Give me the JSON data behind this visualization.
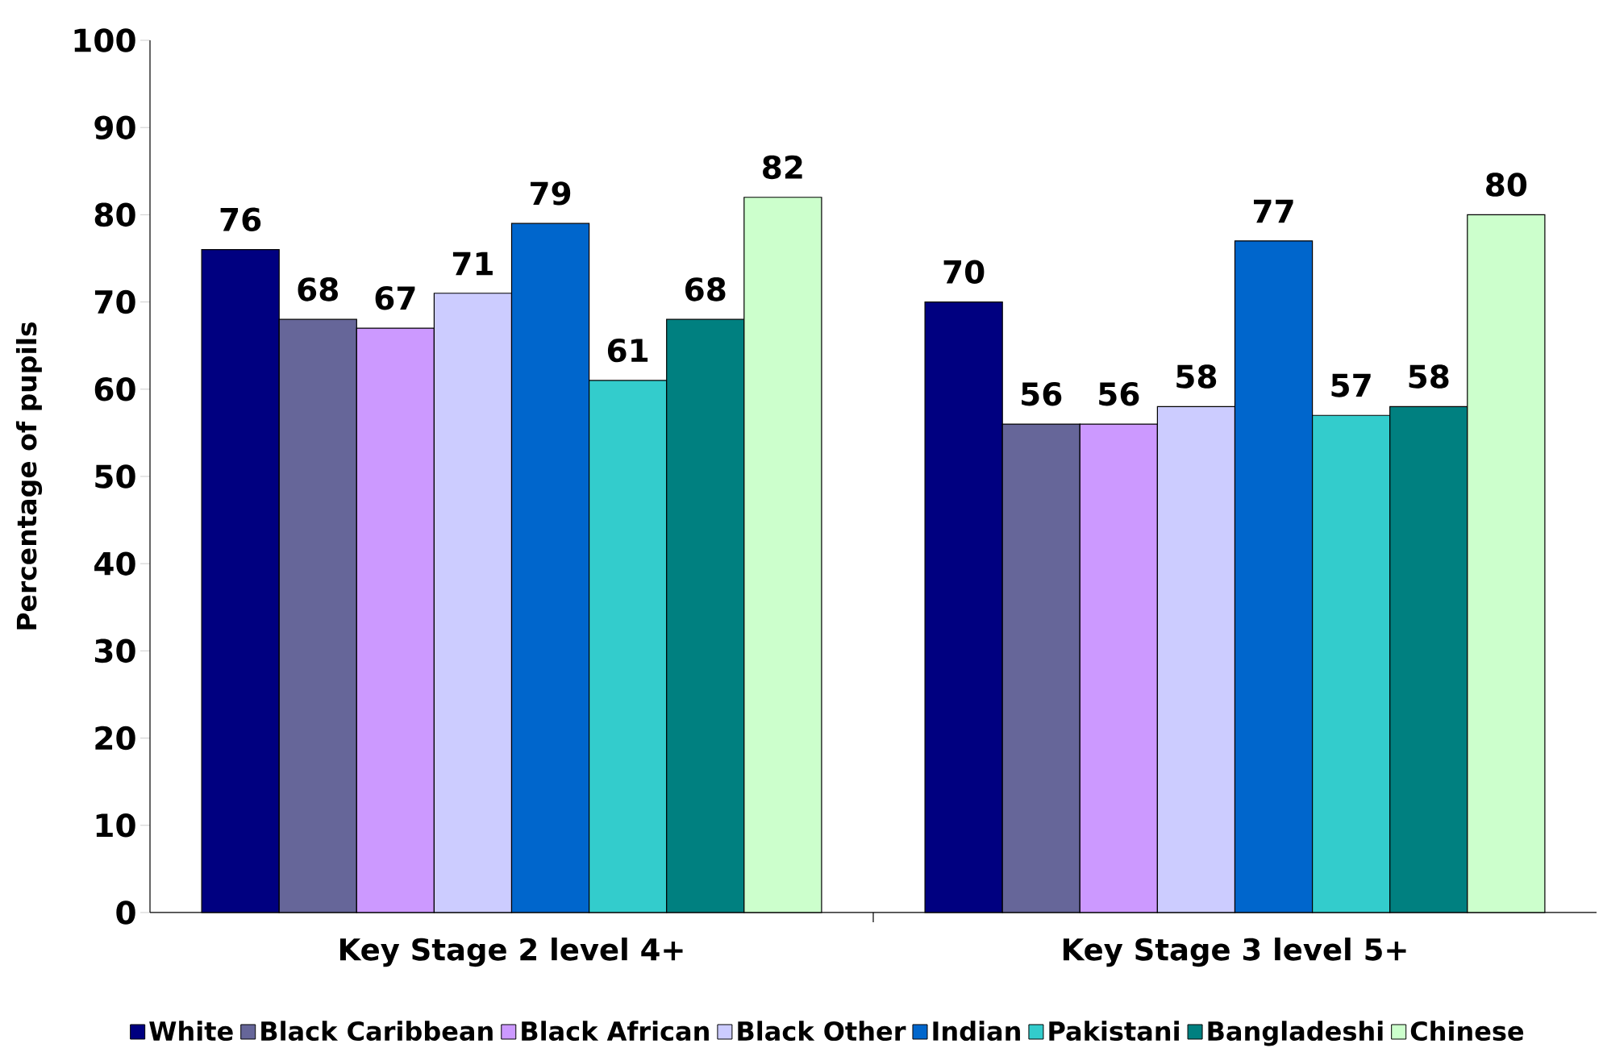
{
  "chart_data": {
    "type": "bar",
    "categories": [
      "Key Stage 2 level 4+",
      "Key Stage 3 level 5+"
    ],
    "ylabel": "Percentage of pupils",
    "ylim": [
      0,
      100
    ],
    "yticks": [
      0,
      10,
      20,
      30,
      40,
      50,
      60,
      70,
      80,
      90,
      100
    ],
    "series": [
      {
        "name": "White",
        "color": "#000080",
        "values": [
          76,
          70
        ]
      },
      {
        "name": "Black Caribbean",
        "color": "#666699",
        "values": [
          68,
          56
        ]
      },
      {
        "name": "Black African",
        "color": "#cc99ff",
        "values": [
          67,
          56
        ]
      },
      {
        "name": "Black Other",
        "color": "#ccccff",
        "values": [
          71,
          58
        ]
      },
      {
        "name": "Indian",
        "color": "#0066cc",
        "values": [
          79,
          77
        ]
      },
      {
        "name": "Pakistani",
        "color": "#33cccc",
        "values": [
          61,
          57
        ]
      },
      {
        "name": "Bangladeshi",
        "color": "#008080",
        "values": [
          68,
          58
        ]
      },
      {
        "name": "Chinese",
        "color": "#ccffcc",
        "values": [
          82,
          80
        ]
      }
    ],
    "data_labels": true,
    "legend": "bottom"
  }
}
